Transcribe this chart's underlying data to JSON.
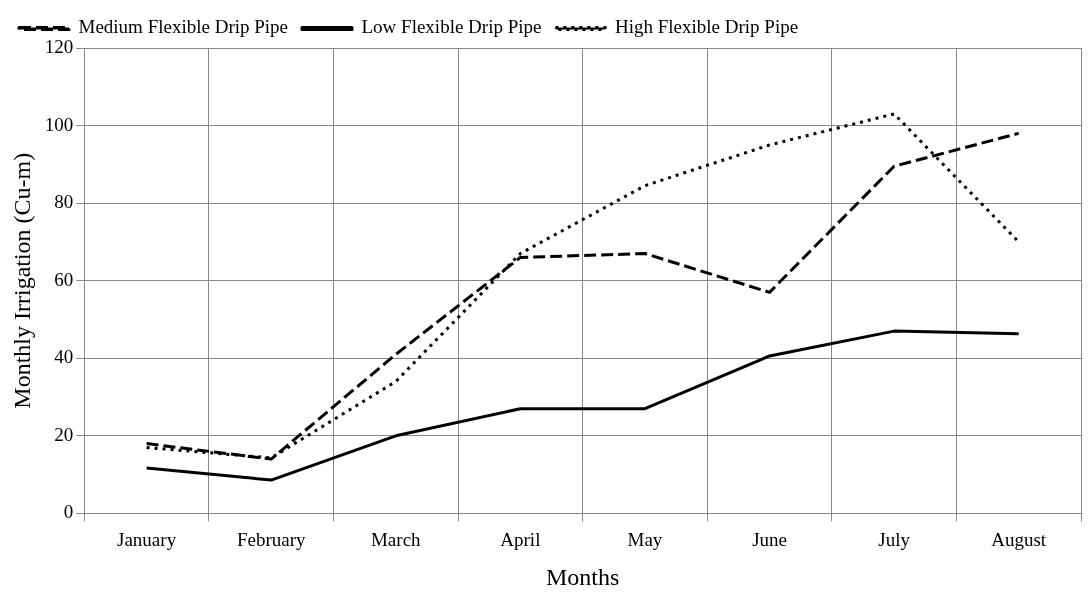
{
  "chart_data": {
    "type": "line",
    "xlabel": "Months",
    "ylabel": "Monthly Irrigation (Cu-m)",
    "categories": [
      "January",
      "February",
      "March",
      "April",
      "May",
      "June",
      "July",
      "August"
    ],
    "series": [
      {
        "name": "Medium Flexible Drip Pipe",
        "color": "#000000",
        "line_style": "dashed",
        "values": [
          18,
          14,
          41,
          66,
          67,
          57,
          89.5,
          98
        ]
      },
      {
        "name": "Low Flexible Drip Pipe",
        "color": "#000000",
        "line_style": "solid",
        "values": [
          11.7,
          8.6,
          20,
          27,
          27,
          40.6,
          47,
          46.3
        ]
      },
      {
        "name": "High Flexible Drip Pipe",
        "color": "#000000",
        "line_style": "dotted",
        "values": [
          17,
          14.3,
          34,
          67,
          84.5,
          95,
          103,
          70
        ]
      }
    ],
    "ylim": [
      0,
      120
    ],
    "yticks": [
      0,
      20,
      40,
      60,
      80,
      100,
      120
    ],
    "grid": true,
    "legend": "top",
    "marker": "none"
  }
}
